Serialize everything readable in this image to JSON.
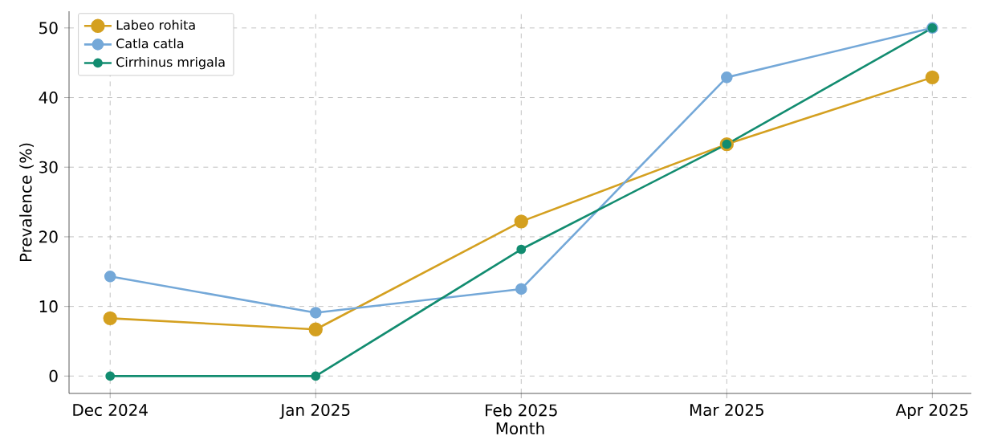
{
  "chart_data": {
    "type": "line",
    "xlabel": "Month",
    "ylabel": "Prevalence (%)",
    "categories": [
      "Dec 2024",
      "Jan 2025",
      "Feb 2025",
      "Mar 2025",
      "Apr 2025"
    ],
    "series": [
      {
        "name": "Labeo rohita",
        "color": "#d4a020",
        "values": [
          8.3,
          6.7,
          22.2,
          33.3,
          42.9
        ]
      },
      {
        "name": "Catla catla",
        "color": "#74a8d8",
        "values": [
          14.3,
          9.1,
          12.5,
          42.9,
          50
        ]
      },
      {
        "name": "Cirrhinus mrigala",
        "color": "#128c70",
        "values": [
          0,
          0,
          18.2,
          33.3,
          50
        ]
      }
    ],
    "ylim": [
      -2.5,
      52.4
    ],
    "yticks": [
      0,
      10,
      20,
      30,
      40,
      50
    ],
    "grid": true,
    "legend": "top left",
    "marker": "circle",
    "line_style": "solid"
  }
}
